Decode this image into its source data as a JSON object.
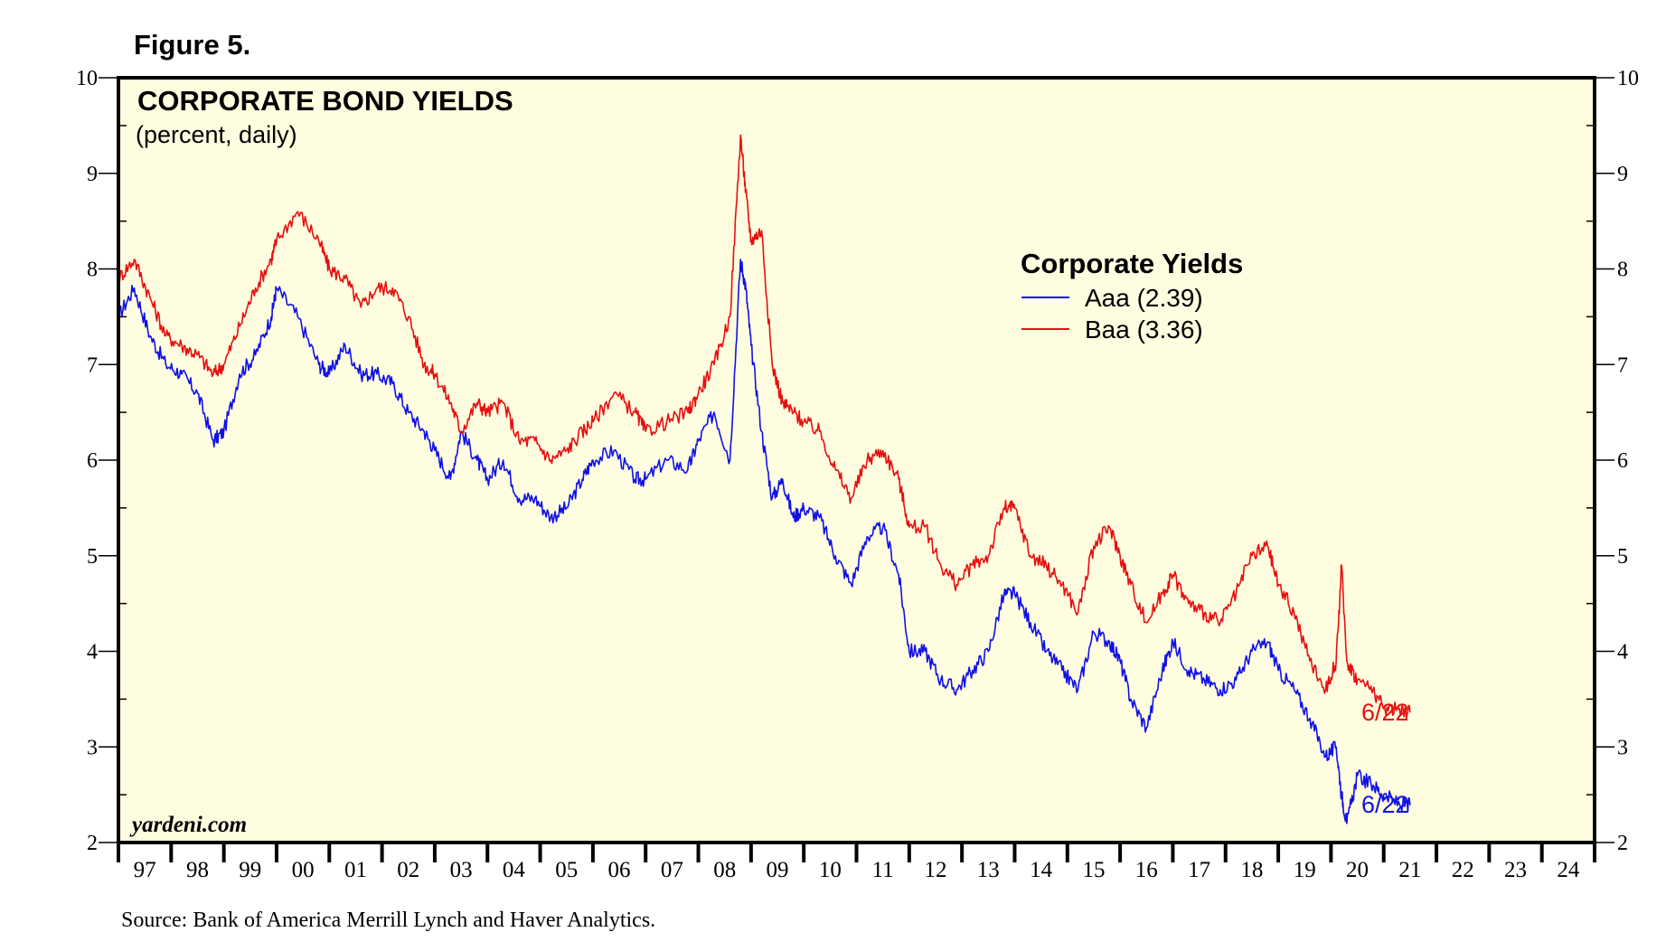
{
  "figure_label": "Figure 5.",
  "source": "Source: Bank of America Merrill Lynch and Haver Analytics.",
  "watermark": "yardeni.com",
  "colors": {
    "background": "#fffde0",
    "aaa": "#1010e6",
    "baa": "#e61010"
  },
  "chart_data": {
    "type": "line",
    "title": "CORPORATE BOND YIELDS",
    "subtitle": "(percent, daily)",
    "xlabel": "",
    "ylabel": "",
    "ylim": [
      2,
      10
    ],
    "xlim": [
      1997,
      2025
    ],
    "y_ticks": [
      "2",
      "3",
      "4",
      "5",
      "6",
      "7",
      "8",
      "9",
      "10"
    ],
    "x_tick_labels": [
      "97",
      "98",
      "99",
      "00",
      "01",
      "02",
      "03",
      "04",
      "05",
      "06",
      "07",
      "08",
      "09",
      "10",
      "11",
      "12",
      "13",
      "14",
      "15",
      "16",
      "17",
      "18",
      "19",
      "20",
      "21",
      "22",
      "23",
      "24"
    ],
    "legend_title": "Corporate Yields",
    "series": [
      {
        "name": "Aaa (2.39)",
        "color": "#1010e6",
        "end_label": "6/22",
        "x": [
          1997.0,
          1997.3,
          1997.6,
          1997.9,
          1998.2,
          1998.5,
          1998.8,
          1999.0,
          1999.3,
          1999.6,
          1999.9,
          2000.0,
          2000.4,
          2000.8,
          2001.0,
          2001.3,
          2001.6,
          2001.9,
          2002.2,
          2002.5,
          2002.8,
          2003.0,
          2003.3,
          2003.5,
          2003.8,
          2004.0,
          2004.3,
          2004.6,
          2004.9,
          2005.2,
          2005.5,
          2005.8,
          2006.0,
          2006.4,
          2006.8,
          2007.0,
          2007.4,
          2007.8,
          2008.0,
          2008.3,
          2008.6,
          2008.8,
          2008.9,
          2009.0,
          2009.2,
          2009.4,
          2009.6,
          2009.8,
          2010.0,
          2010.3,
          2010.6,
          2010.9,
          2011.2,
          2011.5,
          2011.8,
          2012.0,
          2012.3,
          2012.6,
          2012.9,
          2013.2,
          2013.5,
          2013.8,
          2014.0,
          2014.3,
          2014.6,
          2014.9,
          2015.2,
          2015.5,
          2015.8,
          2016.0,
          2016.2,
          2016.5,
          2016.8,
          2017.0,
          2017.3,
          2017.6,
          2017.9,
          2018.2,
          2018.5,
          2018.8,
          2019.0,
          2019.3,
          2019.6,
          2019.9,
          2020.1,
          2020.2,
          2020.3,
          2020.5,
          2020.8,
          2021.0,
          2021.3,
          2021.5
        ],
        "y": [
          7.5,
          7.8,
          7.3,
          7.0,
          6.9,
          6.7,
          6.2,
          6.3,
          6.9,
          7.1,
          7.5,
          7.8,
          7.5,
          7.0,
          6.9,
          7.2,
          6.9,
          6.9,
          6.8,
          6.5,
          6.3,
          6.1,
          5.8,
          6.3,
          6.0,
          5.8,
          6.0,
          5.6,
          5.6,
          5.4,
          5.5,
          5.8,
          6.0,
          6.1,
          5.8,
          5.8,
          6.0,
          5.9,
          6.2,
          6.5,
          6.0,
          8.1,
          7.8,
          7.2,
          6.3,
          5.6,
          5.8,
          5.4,
          5.5,
          5.4,
          5.0,
          4.7,
          5.2,
          5.3,
          4.8,
          4.0,
          4.0,
          3.7,
          3.6,
          3.8,
          4.0,
          4.6,
          4.6,
          4.3,
          4.0,
          3.8,
          3.6,
          4.2,
          4.1,
          3.9,
          3.5,
          3.2,
          3.8,
          4.1,
          3.8,
          3.7,
          3.6,
          3.7,
          4.0,
          4.1,
          3.8,
          3.6,
          3.3,
          2.9,
          3.0,
          2.5,
          2.2,
          2.7,
          2.6,
          2.5,
          2.4,
          2.39
        ]
      },
      {
        "name": "Baa (3.36)",
        "color": "#e61010",
        "end_label": "6/22",
        "x": [
          1997.0,
          1997.3,
          1997.6,
          1997.9,
          1998.2,
          1998.5,
          1998.8,
          1999.0,
          1999.3,
          1999.6,
          1999.9,
          2000.0,
          2000.4,
          2000.8,
          2001.0,
          2001.3,
          2001.6,
          2001.9,
          2002.2,
          2002.5,
          2002.8,
          2003.0,
          2003.3,
          2003.5,
          2003.8,
          2004.0,
          2004.3,
          2004.6,
          2004.9,
          2005.2,
          2005.5,
          2005.8,
          2006.0,
          2006.4,
          2006.8,
          2007.0,
          2007.4,
          2007.8,
          2008.0,
          2008.3,
          2008.6,
          2008.8,
          2008.9,
          2009.0,
          2009.2,
          2009.4,
          2009.6,
          2009.8,
          2010.0,
          2010.3,
          2010.6,
          2010.9,
          2011.2,
          2011.5,
          2011.8,
          2012.0,
          2012.3,
          2012.6,
          2012.9,
          2013.2,
          2013.5,
          2013.8,
          2014.0,
          2014.3,
          2014.6,
          2014.9,
          2015.2,
          2015.5,
          2015.8,
          2016.0,
          2016.2,
          2016.5,
          2016.8,
          2017.0,
          2017.3,
          2017.6,
          2017.9,
          2018.2,
          2018.5,
          2018.8,
          2019.0,
          2019.3,
          2019.6,
          2019.9,
          2020.1,
          2020.2,
          2020.3,
          2020.5,
          2020.8,
          2021.0,
          2021.3,
          2021.5
        ],
        "y": [
          7.9,
          8.1,
          7.7,
          7.3,
          7.2,
          7.1,
          6.9,
          7.0,
          7.4,
          7.8,
          8.1,
          8.3,
          8.6,
          8.3,
          8.0,
          7.9,
          7.6,
          7.8,
          7.8,
          7.5,
          7.0,
          6.9,
          6.6,
          6.3,
          6.6,
          6.5,
          6.6,
          6.2,
          6.2,
          6.0,
          6.1,
          6.3,
          6.4,
          6.7,
          6.5,
          6.3,
          6.4,
          6.5,
          6.7,
          7.0,
          7.5,
          9.4,
          8.8,
          8.3,
          8.4,
          7.0,
          6.6,
          6.5,
          6.4,
          6.3,
          5.9,
          5.6,
          6.0,
          6.1,
          5.8,
          5.3,
          5.3,
          4.9,
          4.7,
          4.9,
          5.0,
          5.5,
          5.5,
          5.0,
          4.9,
          4.7,
          4.4,
          5.1,
          5.3,
          5.0,
          4.7,
          4.3,
          4.6,
          4.8,
          4.5,
          4.4,
          4.3,
          4.6,
          5.0,
          5.1,
          4.7,
          4.4,
          3.9,
          3.6,
          3.9,
          4.9,
          3.9,
          3.7,
          3.6,
          3.4,
          3.4,
          3.36
        ]
      }
    ]
  }
}
